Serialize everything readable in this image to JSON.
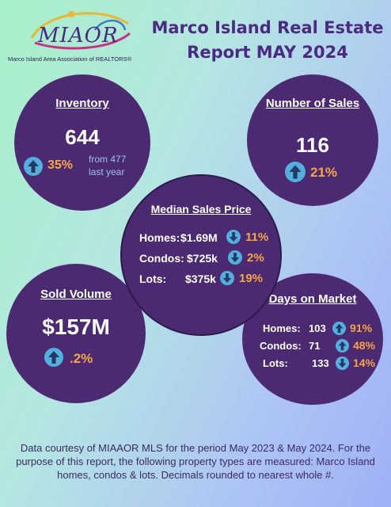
{
  "logo": {
    "wordmark": "MIAOR",
    "tagline": "Marco Island Area Association of REALTORS®"
  },
  "title": {
    "line1": "Marco Island Real Estate",
    "line2": "Report MAY 2024"
  },
  "inventory": {
    "label": "Inventory",
    "value": "644",
    "change": "35%",
    "direction": "up",
    "note_line1": "from 477",
    "note_line2": "last year"
  },
  "sales": {
    "label": "Number of Sales",
    "value": "116",
    "change": "21%",
    "direction": "up"
  },
  "median": {
    "label": "Median Sales Price",
    "rows": [
      {
        "label": "Homes:",
        "value": "$1.69M",
        "change": "11%",
        "direction": "down"
      },
      {
        "label": "Condos:",
        "value": "$725k",
        "change": "2%",
        "direction": "down"
      },
      {
        "label": "Lots:",
        "value": "$375k",
        "change": "19%",
        "direction": "down"
      }
    ]
  },
  "volume": {
    "label": "Sold Volume",
    "value": "$157M",
    "change": ".2%",
    "direction": "up"
  },
  "days": {
    "label": "Days on Market",
    "rows": [
      {
        "label": "Homes:",
        "value": "103",
        "change": "91%",
        "direction": "up"
      },
      {
        "label": "Condos:",
        "value": "71",
        "change": "48%",
        "direction": "up"
      },
      {
        "label": "Lots:",
        "value": "133",
        "change": "14%",
        "direction": "down"
      }
    ]
  },
  "footer": {
    "line1": "Data courtesy of MIAAOR MLS for the period May 2023 & May 2024. For the",
    "line2": "purpose of this report, the following property types are measured: Marco Island",
    "line3": "homes, condos & lots. Decimals rounded to nearest whole #."
  },
  "colors": {
    "circle": "#4b2a72",
    "accent": "#f7a548",
    "arrow": "#54aee0",
    "title": "#4a2a82"
  }
}
